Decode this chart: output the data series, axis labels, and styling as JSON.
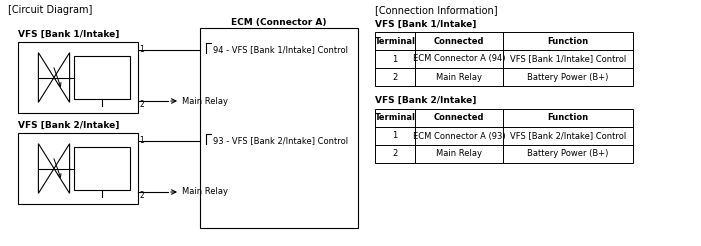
{
  "title_left": "[Circuit Diagram]",
  "title_right": "[Connection Information]",
  "vfs_bank1_label": "VFS [Bank 1/Intake]",
  "vfs_bank2_label": "VFS [Bank 2/Intake]",
  "ecm_label": "ECM (Connector A)",
  "terminal1_bank1": "94 - VFS [Bank 1/Intake] Control",
  "terminal1_bank2": "93 - VFS [Bank 2/Intake] Control",
  "main_relay_label": "Main Relay",
  "conn_info_bank1_label": "VFS [Bank 1/Intake]",
  "conn_info_bank2_label": "VFS [Bank 2/Intake]",
  "table_headers": [
    "Terminal",
    "Connected",
    "Function"
  ],
  "table_bank1_rows": [
    [
      "1",
      "ECM Connector A (94)",
      "VFS [Bank 1/Intake] Control"
    ],
    [
      "2",
      "Main Relay",
      "Battery Power (B+)"
    ]
  ],
  "table_bank2_rows": [
    [
      "1",
      "ECM Connector A (93)",
      "VFS [Bank 2/Intake] Control"
    ],
    [
      "2",
      "Main Relay",
      "Battery Power (B+)"
    ]
  ],
  "bg_color": "#ffffff",
  "text_color": "#000000",
  "line_color": "#000000",
  "font_size_title": 7.0,
  "font_size_label": 6.5,
  "font_size_table": 6.0,
  "font_size_pin": 5.5
}
